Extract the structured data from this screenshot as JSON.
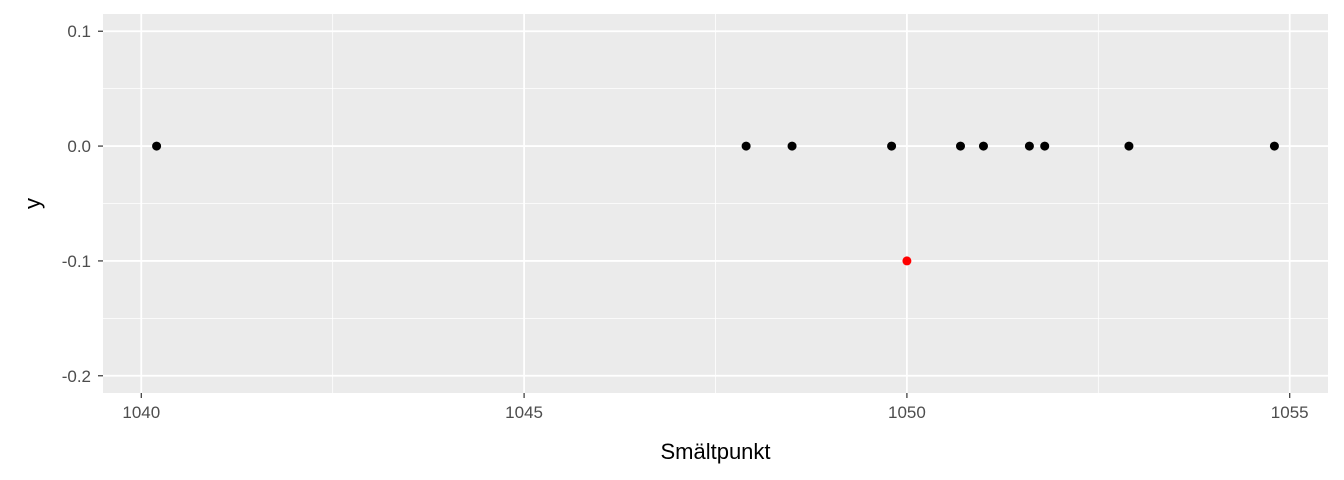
{
  "chart_data": {
    "type": "scatter",
    "xlabel": "Smältpunkt",
    "ylabel": "y",
    "xlim": [
      1039.5,
      1055.5
    ],
    "ylim": [
      -0.215,
      0.115
    ],
    "x_ticks": [
      1040,
      1045,
      1050,
      1055
    ],
    "x_tick_labels": [
      "1040",
      "1045",
      "1050",
      "1055"
    ],
    "y_ticks": [
      0.1,
      0.0,
      -0.1,
      -0.2
    ],
    "y_tick_labels": [
      "0.1",
      "0.0",
      "-0.1",
      "-0.2"
    ],
    "grid": true,
    "legend": "none",
    "background_color": "#ebebeb",
    "grid_color": "#ffffff",
    "series": [
      {
        "color": "#000000",
        "points": [
          {
            "x": 1040.2,
            "y": 0
          },
          {
            "x": 1047.9,
            "y": 0
          },
          {
            "x": 1048.5,
            "y": 0
          },
          {
            "x": 1049.8,
            "y": 0
          },
          {
            "x": 1050.7,
            "y": 0
          },
          {
            "x": 1051.0,
            "y": 0
          },
          {
            "x": 1051.6,
            "y": 0
          },
          {
            "x": 1051.8,
            "y": 0
          },
          {
            "x": 1052.9,
            "y": 0
          },
          {
            "x": 1054.8,
            "y": 0
          }
        ]
      },
      {
        "color": "#ff0000",
        "points": [
          {
            "x": 1050.0,
            "y": -0.1
          }
        ]
      }
    ]
  }
}
